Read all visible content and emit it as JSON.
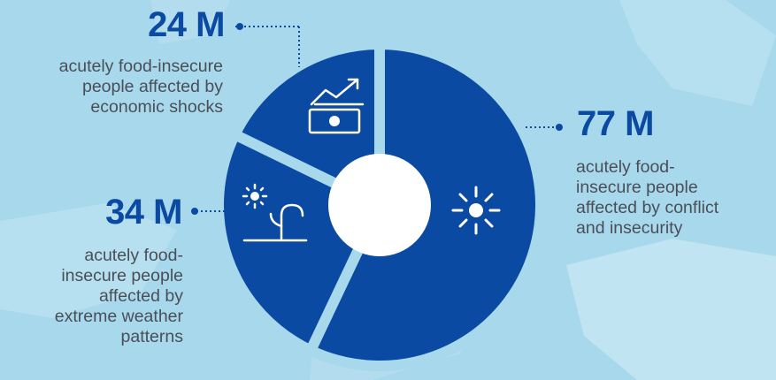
{
  "chart_data": {
    "type": "pie",
    "style": "donut",
    "colors": {
      "slice": "#0b4aa2",
      "gap": "#a8d8ec",
      "hole": "#ffffff",
      "text": "#4a4f57",
      "accent": "#0b4aa2"
    },
    "slices": [
      {
        "key": "conflict",
        "value": 77,
        "value_label": "77 M",
        "text": "acutely food-insecure people affected by conflict and insecurity",
        "icon": "explosion-icon"
      },
      {
        "key": "weather",
        "value": 34,
        "value_label": "34 M",
        "text": "acutely food-insecure people affected by extreme weather patterns",
        "icon": "sun-drought-plant-icon"
      },
      {
        "key": "economic",
        "value": 24,
        "value_label": "24 M",
        "text": "acutely food-insecure people affected by economic shocks",
        "icon": "money-trend-up-icon"
      }
    ]
  },
  "labels": {
    "economic_num": "24 M",
    "economic_text": [
      "acutely food-insecure",
      "people affected by",
      "economic shocks"
    ],
    "conflict_num": "77 M",
    "conflict_text": [
      "acutely food-",
      "insecure people",
      "affected by conflict",
      "and insecurity"
    ],
    "weather_num": "34 M",
    "weather_text": [
      "acutely food-",
      "insecure people",
      "affected by",
      "extreme weather",
      "patterns"
    ]
  }
}
